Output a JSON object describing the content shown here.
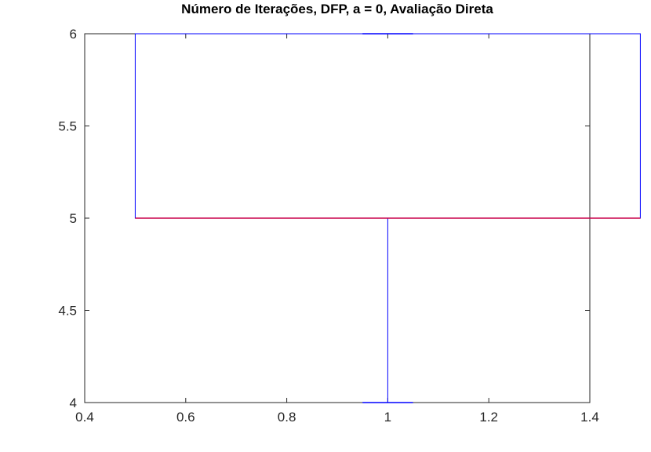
{
  "chart_data": {
    "type": "boxplot",
    "title": "Número de Iterações, DFP, a = 0, Avaliação Direta",
    "xlabel": "",
    "ylabel": "",
    "xlim": [
      0.4,
      1.4
    ],
    "ylim": [
      4,
      6
    ],
    "xticks": [
      "0.4",
      "0.6",
      "0.8",
      "1",
      "1.2",
      "1.4"
    ],
    "yticks": [
      "4",
      "4.5",
      "5",
      "5.5",
      "6"
    ],
    "grid": false,
    "box": {
      "position": 1,
      "width": 1,
      "min": 4,
      "q1": 5,
      "median": 5,
      "q3": 6,
      "max": 6,
      "box_color": "#0000ff",
      "median_color": "#c8004a",
      "whisker_color": "#0000ff"
    }
  }
}
